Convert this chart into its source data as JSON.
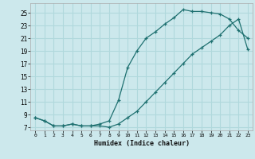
{
  "xlabel": "Humidex (Indice chaleur)",
  "bg_color": "#cce8ec",
  "line_color": "#1e7070",
  "grid_color": "#b0d8dc",
  "xlim": [
    -0.5,
    23.5
  ],
  "ylim": [
    6.5,
    26.5
  ],
  "xticks": [
    0,
    1,
    2,
    3,
    4,
    5,
    6,
    7,
    8,
    9,
    10,
    11,
    12,
    13,
    14,
    15,
    16,
    17,
    18,
    19,
    20,
    21,
    22,
    23
  ],
  "yticks": [
    7,
    9,
    11,
    13,
    15,
    17,
    19,
    21,
    23,
    25
  ],
  "line1_x": [
    0,
    1,
    2,
    3,
    4,
    5,
    6,
    7,
    8,
    9,
    10,
    11,
    12,
    13,
    14,
    15,
    16,
    17,
    18,
    19,
    20,
    21,
    22,
    23
  ],
  "line1_y": [
    8.5,
    8.0,
    7.2,
    7.2,
    7.5,
    7.2,
    7.2,
    7.5,
    8.0,
    11.2,
    16.4,
    19.0,
    21.0,
    22.0,
    23.2,
    24.2,
    25.5,
    25.2,
    25.2,
    25.0,
    24.8,
    24.0,
    22.2,
    21.0
  ],
  "line2_x": [
    0,
    1,
    2,
    3,
    4,
    5,
    6,
    7,
    8,
    9,
    10,
    11,
    12,
    13,
    14,
    15,
    16,
    17,
    18,
    19,
    20,
    21,
    22,
    23
  ],
  "line2_y": [
    8.5,
    8.0,
    7.2,
    7.2,
    7.5,
    7.2,
    7.2,
    7.2,
    7.0,
    7.5,
    8.5,
    9.5,
    11.0,
    12.5,
    14.0,
    15.5,
    17.0,
    18.5,
    19.5,
    20.5,
    21.5,
    23.0,
    24.0,
    19.2
  ]
}
